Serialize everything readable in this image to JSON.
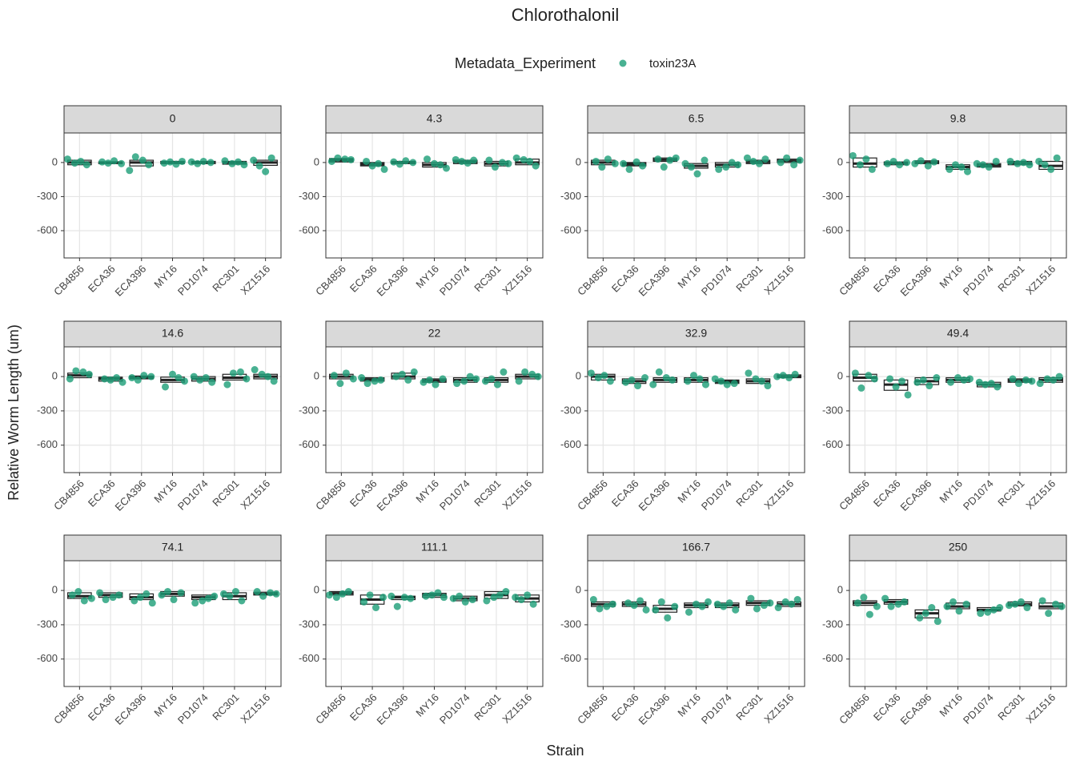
{
  "chart_data": {
    "type": "box_strip",
    "title": "Chlorothalonil",
    "legend_title": "Metadata_Experiment",
    "legend_label": "toxin23A",
    "color": "#1b9e77",
    "x_label": "Strain",
    "y_label": "Relative Worm Length (um)",
    "categories": [
      "CB4856",
      "ECA36",
      "ECA396",
      "MY16",
      "PD1074",
      "RC301",
      "XZ1516"
    ],
    "ylim": [
      -840,
      260
    ],
    "yticks": [
      0,
      -300,
      -600
    ],
    "grid": true,
    "panels": [
      {
        "label": "0",
        "q1": [
          -20,
          -10,
          -30,
          -10,
          -10,
          -15,
          -25
        ],
        "median": [
          0,
          0,
          0,
          0,
          0,
          0,
          0
        ],
        "q3": [
          20,
          5,
          20,
          10,
          10,
          10,
          20
        ],
        "points": [
          [
            30,
            -20,
            10,
            -5
          ],
          [
            15,
            -5,
            5,
            -10
          ],
          [
            50,
            -70,
            -20,
            20
          ],
          [
            10,
            -15,
            5,
            -5
          ],
          [
            10,
            -10,
            5,
            0
          ],
          [
            15,
            -20,
            5,
            -10
          ],
          [
            40,
            -80,
            -30,
            20
          ]
        ]
      },
      {
        "label": "4.3",
        "q1": [
          5,
          -30,
          -10,
          -40,
          -10,
          -30,
          -20
        ],
        "median": [
          20,
          -15,
          0,
          -20,
          5,
          -10,
          0
        ],
        "q3": [
          35,
          0,
          10,
          0,
          20,
          10,
          30
        ],
        "points": [
          [
            40,
            10,
            25,
            30
          ],
          [
            -60,
            -10,
            -30,
            10
          ],
          [
            15,
            -15,
            5,
            0
          ],
          [
            30,
            -50,
            -20,
            -10
          ],
          [
            20,
            -5,
            10,
            25
          ],
          [
            -40,
            20,
            -10,
            0
          ],
          [
            40,
            -30,
            10,
            25
          ]
        ]
      },
      {
        "label": "6.5",
        "q1": [
          -20,
          -30,
          10,
          -50,
          -40,
          -10,
          0
        ],
        "median": [
          0,
          -15,
          25,
          -30,
          -20,
          5,
          15
        ],
        "q3": [
          20,
          0,
          40,
          -10,
          0,
          20,
          30
        ],
        "points": [
          [
            30,
            -40,
            10,
            -10
          ],
          [
            -60,
            -10,
            -30,
            5
          ],
          [
            40,
            20,
            -40,
            30
          ],
          [
            -100,
            -40,
            -10,
            20
          ],
          [
            -60,
            -20,
            0,
            -40
          ],
          [
            30,
            -10,
            10,
            40
          ],
          [
            40,
            0,
            20,
            -20
          ]
        ]
      },
      {
        "label": "9.8",
        "q1": [
          -40,
          -20,
          -10,
          -60,
          -40,
          -20,
          -60
        ],
        "median": [
          -10,
          -5,
          0,
          -40,
          -25,
          -5,
          -30
        ],
        "q3": [
          40,
          5,
          15,
          -20,
          -10,
          10,
          10
        ],
        "points": [
          [
            60,
            -60,
            30,
            -20
          ],
          [
            -20,
            10,
            -10,
            0
          ],
          [
            15,
            -10,
            5,
            -30
          ],
          [
            -80,
            -40,
            -20,
            -60
          ],
          [
            -40,
            -20,
            -10,
            10
          ],
          [
            10,
            -20,
            0,
            -10
          ],
          [
            40,
            -60,
            -20,
            10
          ]
        ]
      },
      {
        "label": "14.6",
        "q1": [
          -10,
          -40,
          -20,
          -50,
          -40,
          -30,
          -20
        ],
        "median": [
          10,
          -20,
          -10,
          -30,
          -20,
          -10,
          0
        ],
        "q3": [
          30,
          -5,
          5,
          -5,
          0,
          20,
          20
        ],
        "points": [
          [
            50,
            -20,
            20,
            40
          ],
          [
            -50,
            -10,
            -30,
            -20
          ],
          [
            10,
            -30,
            -10,
            0
          ],
          [
            -90,
            -40,
            -10,
            20
          ],
          [
            -50,
            -10,
            -30,
            0
          ],
          [
            30,
            -70,
            -20,
            40
          ],
          [
            60,
            -40,
            0,
            20
          ]
        ]
      },
      {
        "label": "22",
        "q1": [
          -20,
          -40,
          -20,
          -50,
          -50,
          -50,
          -20
        ],
        "median": [
          0,
          -25,
          0,
          -35,
          -30,
          -30,
          0
        ],
        "q3": [
          20,
          -10,
          30,
          -20,
          -10,
          -10,
          20
        ],
        "points": [
          [
            30,
            -60,
            10,
            -20
          ],
          [
            -60,
            -10,
            -30,
            -40
          ],
          [
            40,
            -30,
            20,
            0
          ],
          [
            -70,
            -30,
            -50,
            -20
          ],
          [
            -60,
            -20,
            0,
            -40
          ],
          [
            40,
            -70,
            -20,
            -40
          ],
          [
            40,
            -40,
            0,
            20
          ]
        ]
      },
      {
        "label": "32.9",
        "q1": [
          -30,
          -60,
          -50,
          -50,
          -60,
          -60,
          -10
        ],
        "median": [
          0,
          -40,
          -30,
          -30,
          -45,
          -40,
          0
        ],
        "q3": [
          20,
          -20,
          -10,
          -10,
          -30,
          -20,
          15
        ],
        "points": [
          [
            30,
            -40,
            10,
            -10
          ],
          [
            -80,
            -30,
            -50,
            -10
          ],
          [
            40,
            -70,
            -30,
            -10
          ],
          [
            -70,
            -20,
            10,
            -40
          ],
          [
            -70,
            -40,
            -20,
            -60
          ],
          [
            30,
            -80,
            -40,
            -20
          ],
          [
            20,
            -10,
            10,
            0
          ]
        ]
      },
      {
        "label": "49.4",
        "q1": [
          -40,
          -120,
          -70,
          -50,
          -90,
          -50,
          -50
        ],
        "median": [
          -10,
          -70,
          -40,
          -30,
          -70,
          -35,
          -30
        ],
        "q3": [
          20,
          -30,
          -10,
          -10,
          -50,
          -20,
          -10
        ],
        "points": [
          [
            -100,
            30,
            -20,
            10
          ],
          [
            -160,
            -40,
            -90,
            -20
          ],
          [
            -80,
            -30,
            -50,
            -10
          ],
          [
            -50,
            -20,
            -30,
            -10
          ],
          [
            -90,
            -60,
            -70,
            -50
          ],
          [
            -60,
            -20,
            -40,
            -30
          ],
          [
            -60,
            0,
            -30,
            -20
          ]
        ]
      },
      {
        "label": "74.1",
        "q1": [
          -70,
          -60,
          -80,
          -50,
          -80,
          -80,
          -40
        ],
        "median": [
          -50,
          -40,
          -60,
          -30,
          -60,
          -50,
          -30
        ],
        "q3": [
          -20,
          -20,
          -30,
          -10,
          -40,
          -20,
          -15
        ],
        "points": [
          [
            -90,
            -10,
            -40,
            -70
          ],
          [
            -80,
            -20,
            -40,
            -60
          ],
          [
            -110,
            -30,
            -60,
            -90
          ],
          [
            -80,
            -10,
            -40,
            -20
          ],
          [
            -110,
            -50,
            -70,
            -90
          ],
          [
            -90,
            -10,
            -50,
            -30
          ],
          [
            -50,
            -10,
            -30,
            -20
          ]
        ]
      },
      {
        "label": "111.1",
        "q1": [
          -40,
          -120,
          -80,
          -60,
          -90,
          -70,
          -100
        ],
        "median": [
          -25,
          -80,
          -60,
          -40,
          -70,
          -40,
          -70
        ],
        "q3": [
          -10,
          -40,
          -50,
          -25,
          -50,
          -10,
          -40
        ],
        "points": [
          [
            -40,
            -10,
            -30,
            -60
          ],
          [
            -150,
            -40,
            -100,
            -60
          ],
          [
            -140,
            -50,
            -70,
            -60
          ],
          [
            -60,
            -20,
            -40,
            -50
          ],
          [
            -100,
            -50,
            -70,
            -80
          ],
          [
            -90,
            -10,
            -40,
            -60
          ],
          [
            -120,
            -40,
            -80,
            -60
          ]
        ]
      },
      {
        "label": "166.7",
        "q1": [
          -140,
          -140,
          -190,
          -150,
          -150,
          -130,
          -140
        ],
        "median": [
          -120,
          -120,
          -160,
          -130,
          -130,
          -110,
          -120
        ],
        "q3": [
          -100,
          -100,
          -130,
          -110,
          -110,
          -90,
          -100
        ],
        "points": [
          [
            -160,
            -80,
            -120,
            -140
          ],
          [
            -170,
            -90,
            -130,
            -110
          ],
          [
            -240,
            -100,
            -170,
            -140
          ],
          [
            -190,
            -100,
            -140,
            -120
          ],
          [
            -170,
            -110,
            -140,
            -120
          ],
          [
            -160,
            -70,
            -110,
            -130
          ],
          [
            -150,
            -80,
            -120,
            -100
          ]
        ]
      },
      {
        "label": "250",
        "q1": [
          -130,
          -120,
          -240,
          -160,
          -180,
          -135,
          -160
        ],
        "median": [
          -110,
          -100,
          -200,
          -140,
          -170,
          -120,
          -140
        ],
        "q3": [
          -90,
          -80,
          -170,
          -110,
          -150,
          -100,
          -110
        ],
        "points": [
          [
            -210,
            -60,
            -110,
            -140
          ],
          [
            -140,
            -70,
            -100,
            -120
          ],
          [
            -270,
            -150,
            -200,
            -240
          ],
          [
            -180,
            -100,
            -140,
            -120
          ],
          [
            -200,
            -150,
            -170,
            -190
          ],
          [
            -150,
            -100,
            -120,
            -130
          ],
          [
            -200,
            -90,
            -140,
            -120
          ]
        ]
      }
    ]
  }
}
